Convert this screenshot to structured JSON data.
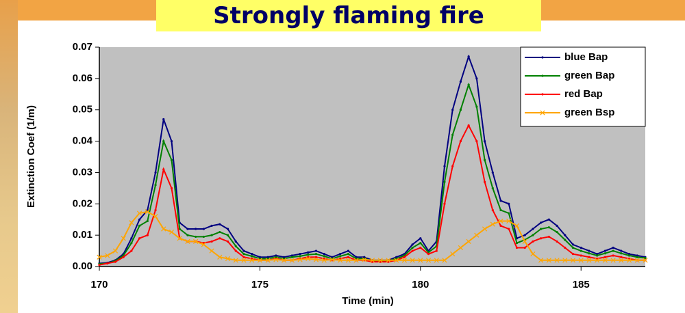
{
  "chart_data": {
    "type": "line",
    "title": "Strongly flaming fire",
    "x_label": "Time (min)",
    "y_label": "Extinction Coef (1/m)",
    "x": [
      170,
      170.25,
      170.5,
      170.75,
      171,
      171.25,
      171.5,
      171.75,
      172,
      172.25,
      172.5,
      172.75,
      173,
      173.25,
      173.5,
      173.75,
      174,
      174.25,
      174.5,
      174.75,
      175,
      175.25,
      175.5,
      175.75,
      176,
      176.25,
      176.5,
      176.75,
      177,
      177.25,
      177.5,
      177.75,
      178,
      178.25,
      178.5,
      178.75,
      179,
      179.25,
      179.5,
      179.75,
      180,
      180.25,
      180.5,
      180.75,
      181,
      181.25,
      181.5,
      181.75,
      182,
      182.25,
      182.5,
      182.75,
      183,
      183.25,
      183.5,
      183.75,
      184,
      184.25,
      184.5,
      184.75,
      185,
      185.25,
      185.5,
      185.75,
      186,
      186.25,
      186.5,
      186.75,
      187
    ],
    "series": [
      {
        "name": "blue Bap",
        "color": "#000080",
        "marker": "dot",
        "values": [
          0.001,
          0.0012,
          0.002,
          0.004,
          0.009,
          0.015,
          0.018,
          0.03,
          0.047,
          0.04,
          0.014,
          0.012,
          0.012,
          0.012,
          0.013,
          0.0135,
          0.012,
          0.008,
          0.005,
          0.004,
          0.003,
          0.003,
          0.0035,
          0.003,
          0.0035,
          0.004,
          0.0045,
          0.005,
          0.004,
          0.003,
          0.004,
          0.005,
          0.003,
          0.003,
          0.002,
          0.002,
          0.002,
          0.003,
          0.004,
          0.007,
          0.009,
          0.005,
          0.008,
          0.032,
          0.05,
          0.059,
          0.067,
          0.06,
          0.04,
          0.03,
          0.021,
          0.02,
          0.009,
          0.01,
          0.012,
          0.014,
          0.015,
          0.013,
          0.01,
          0.007,
          0.006,
          0.005,
          0.004,
          0.005,
          0.006,
          0.005,
          0.004,
          0.0035,
          0.003
        ]
      },
      {
        "name": "green Bap",
        "color": "#008000",
        "marker": "dot",
        "values": [
          0.0008,
          0.001,
          0.0018,
          0.0035,
          0.0075,
          0.013,
          0.0145,
          0.026,
          0.04,
          0.034,
          0.012,
          0.01,
          0.0095,
          0.0095,
          0.01,
          0.011,
          0.01,
          0.0065,
          0.004,
          0.0033,
          0.0025,
          0.0025,
          0.003,
          0.0025,
          0.003,
          0.0033,
          0.0038,
          0.004,
          0.0033,
          0.0025,
          0.0033,
          0.004,
          0.0025,
          0.0025,
          0.0018,
          0.0018,
          0.0018,
          0.0025,
          0.0035,
          0.006,
          0.0075,
          0.0045,
          0.0065,
          0.027,
          0.042,
          0.05,
          0.058,
          0.051,
          0.034,
          0.025,
          0.018,
          0.017,
          0.0075,
          0.0085,
          0.01,
          0.012,
          0.0125,
          0.011,
          0.0085,
          0.006,
          0.005,
          0.0042,
          0.0035,
          0.0042,
          0.005,
          0.0042,
          0.0035,
          0.003,
          0.0027
        ]
      },
      {
        "name": "red Bap",
        "color": "#ff0000",
        "marker": "dot",
        "values": [
          0.0005,
          0.001,
          0.0015,
          0.003,
          0.005,
          0.009,
          0.01,
          0.018,
          0.031,
          0.025,
          0.009,
          0.008,
          0.008,
          0.0075,
          0.008,
          0.009,
          0.008,
          0.005,
          0.003,
          0.0025,
          0.002,
          0.002,
          0.0025,
          0.002,
          0.002,
          0.0025,
          0.003,
          0.003,
          0.0025,
          0.002,
          0.0025,
          0.003,
          0.002,
          0.002,
          0.0015,
          0.0015,
          0.0015,
          0.002,
          0.003,
          0.005,
          0.006,
          0.004,
          0.005,
          0.02,
          0.032,
          0.04,
          0.045,
          0.04,
          0.027,
          0.018,
          0.013,
          0.012,
          0.006,
          0.006,
          0.008,
          0.009,
          0.0095,
          0.008,
          0.006,
          0.004,
          0.0035,
          0.003,
          0.0025,
          0.003,
          0.0035,
          0.003,
          0.0025,
          0.002,
          0.002
        ]
      },
      {
        "name": "green Bsp",
        "color": "#ffa500",
        "marker": "x",
        "values": [
          0.003,
          0.0035,
          0.005,
          0.009,
          0.014,
          0.017,
          0.0175,
          0.016,
          0.012,
          0.011,
          0.009,
          0.008,
          0.008,
          0.007,
          0.005,
          0.003,
          0.0025,
          0.002,
          0.002,
          0.002,
          0.002,
          0.002,
          0.0022,
          0.002,
          0.002,
          0.0022,
          0.0025,
          0.0022,
          0.002,
          0.0022,
          0.002,
          0.002,
          0.002,
          0.0022,
          0.002,
          0.002,
          0.002,
          0.002,
          0.002,
          0.002,
          0.002,
          0.002,
          0.002,
          0.002,
          0.004,
          0.006,
          0.008,
          0.01,
          0.012,
          0.0135,
          0.0145,
          0.0145,
          0.013,
          0.008,
          0.004,
          0.002,
          0.002,
          0.002,
          0.002,
          0.002,
          0.002,
          0.002,
          0.002,
          0.002,
          0.002,
          0.002,
          0.002,
          0.002,
          0.002
        ]
      }
    ],
    "xlim": [
      170,
      187
    ],
    "xticks": [
      170,
      175,
      180,
      185
    ],
    "ylim": [
      0,
      0.07
    ],
    "yticks": [
      {
        "value": 0,
        "label": "0.00"
      },
      {
        "value": 0.01,
        "label": "0.01"
      },
      {
        "value": 0.02,
        "label": "0.02"
      },
      {
        "value": 0.03,
        "label": "0.03"
      },
      {
        "value": 0.04,
        "label": "0.04"
      },
      {
        "value": 0.05,
        "label": "0.05"
      },
      {
        "value": 0.06,
        "label": "0.06"
      },
      {
        "value": 0.07,
        "label": "0.07"
      }
    ],
    "grid": false,
    "legend": "upper right"
  }
}
